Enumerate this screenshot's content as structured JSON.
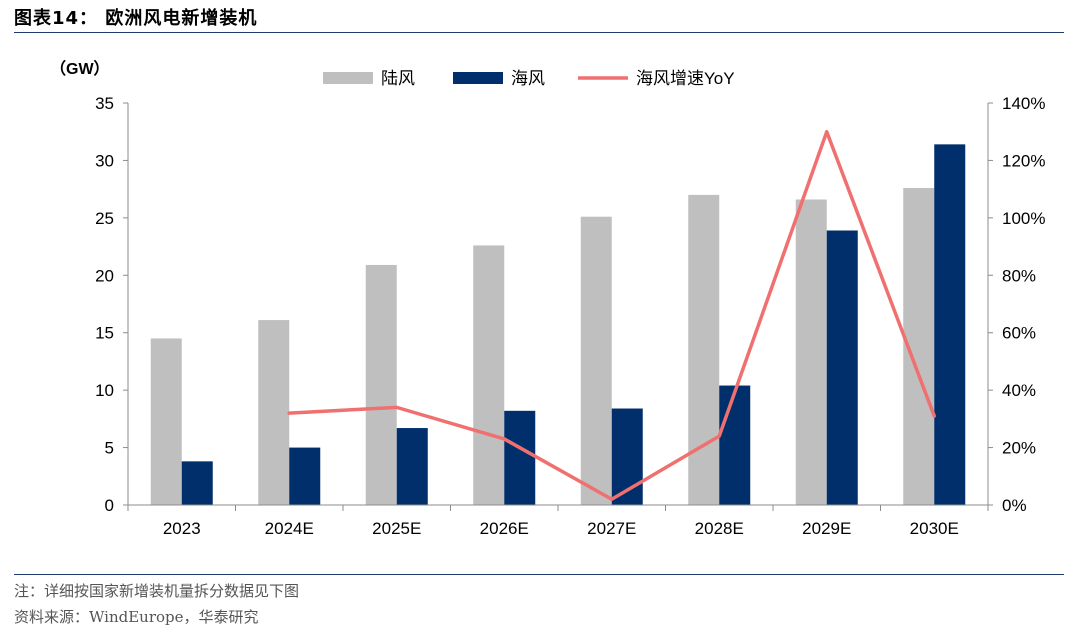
{
  "figure": {
    "title": "图表14：  欧洲风电新增装机",
    "note": "注：详细按国家新增装机量拆分数据见下图",
    "source": "资料来源：WindEurope，华泰研究"
  },
  "chart_data": {
    "type": "bar",
    "categories": [
      "2023",
      "2024E",
      "2025E",
      "2026E",
      "2027E",
      "2028E",
      "2029E",
      "2030E"
    ],
    "y_unit_label": "（GW）",
    "ylim": [
      0,
      35
    ],
    "y_ticks": [
      0,
      5,
      10,
      15,
      20,
      25,
      30,
      35
    ],
    "y2lim": [
      0,
      1.4
    ],
    "y2_ticks": [
      "0%",
      "20%",
      "40%",
      "60%",
      "80%",
      "100%",
      "120%",
      "140%"
    ],
    "grid": false,
    "legend_position": "top",
    "series": [
      {
        "name": "陆风",
        "type": "bar",
        "axis": "left",
        "color": "#bfbfbf",
        "values": [
          14.5,
          16.1,
          20.9,
          22.6,
          25.1,
          27.0,
          26.6,
          27.6
        ]
      },
      {
        "name": "海风",
        "type": "bar",
        "axis": "left",
        "color": "#002f6c",
        "values": [
          3.8,
          5.0,
          6.7,
          8.2,
          8.4,
          10.4,
          23.9,
          31.4
        ]
      },
      {
        "name": "海风增速YoY",
        "type": "line",
        "axis": "right",
        "color": "#f07070",
        "values": [
          null,
          0.32,
          0.34,
          0.23,
          0.02,
          0.24,
          1.3,
          0.31
        ]
      }
    ]
  }
}
